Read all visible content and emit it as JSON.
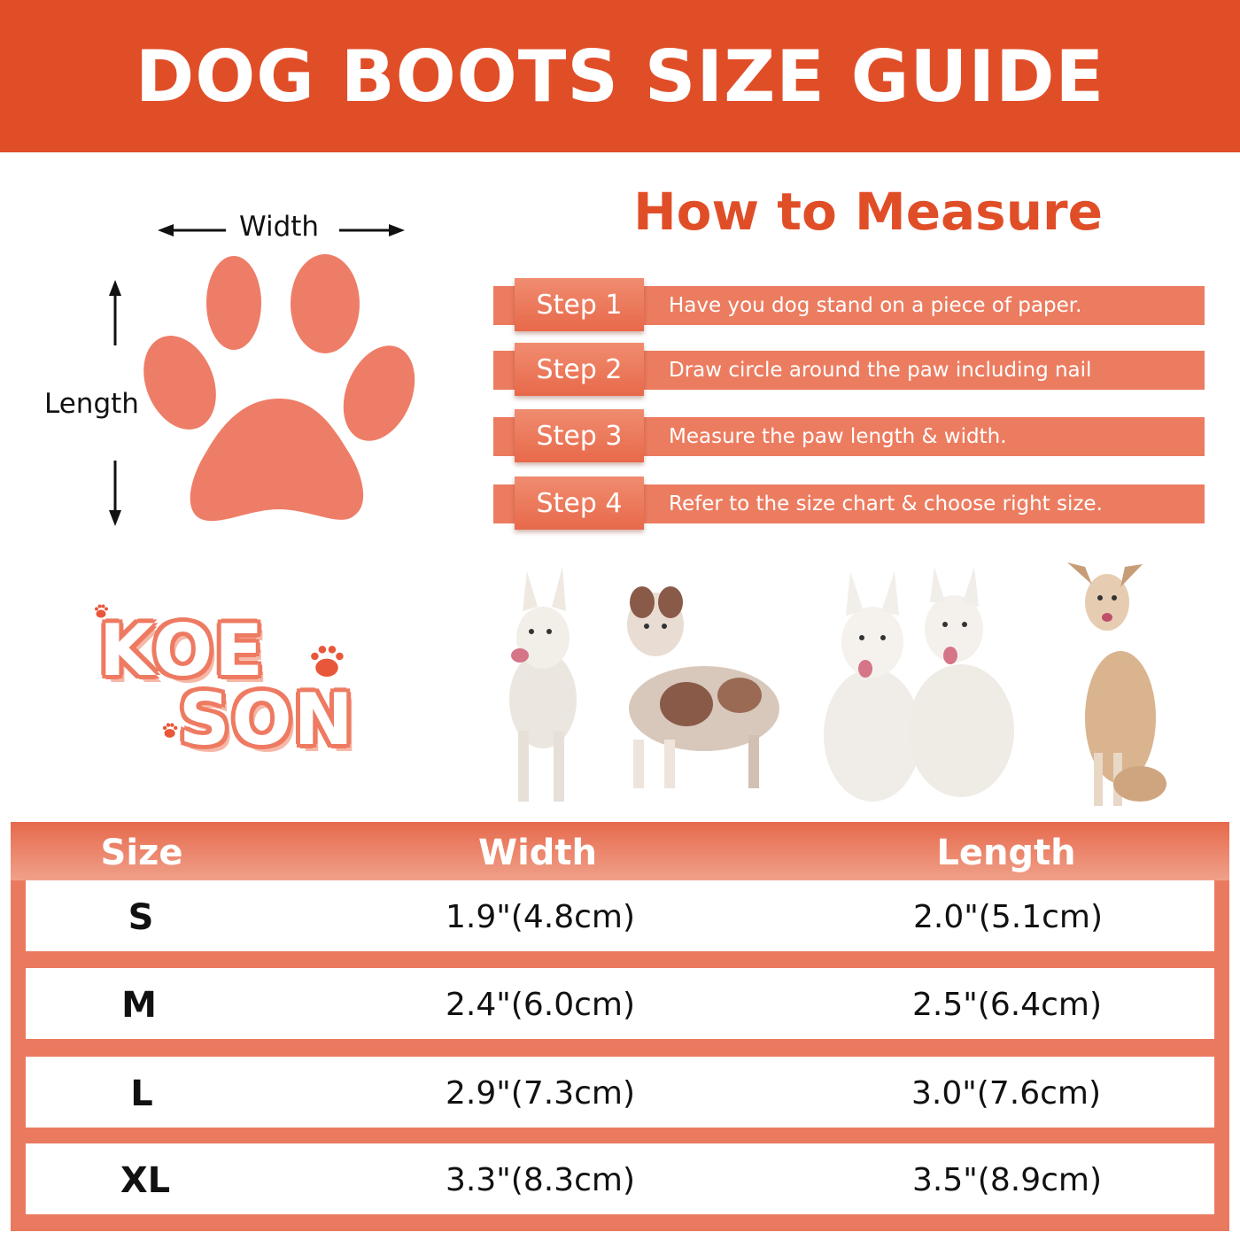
{
  "header": {
    "title": "DOG BOOTS SIZE GUIDE"
  },
  "diagram": {
    "width_label": "Width",
    "length_label": "Length"
  },
  "how_to": {
    "title": "How to Measure",
    "steps": [
      {
        "label": "Step 1",
        "text": "Have you dog stand on a piece of paper."
      },
      {
        "label": "Step 2",
        "text": "Draw circle around the paw including nail"
      },
      {
        "label": "Step 3",
        "text": "Measure the paw length & width."
      },
      {
        "label": "Step 4",
        "text": "Refer to the size chart & choose right size."
      }
    ]
  },
  "logo": {
    "line1": "KOE",
    "line2": "SON"
  },
  "size_table": {
    "headers": [
      "Size",
      "Width",
      "Length"
    ],
    "rows": [
      [
        "S",
        "1.9\"(4.8cm)",
        "2.0\"(5.1cm)"
      ],
      [
        "M",
        "2.4\"(6.0cm)",
        "2.5\"(6.4cm)"
      ],
      [
        "L",
        "2.9\"(7.3cm)",
        "3.0\"(7.6cm)"
      ],
      [
        "XL",
        "3.3\"(8.3cm)",
        "3.5\"(8.9cm)"
      ]
    ]
  },
  "colors": {
    "brand_orange": "#e04e28",
    "paw_salmon": "#ee7d67",
    "table_salmon": "#ea7a5f"
  }
}
